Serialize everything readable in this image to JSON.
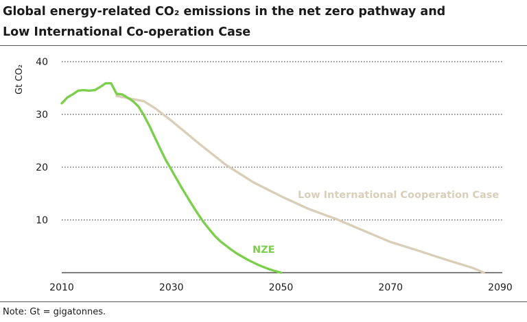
{
  "title_line1": "Global energy-related CO₂ emissions in the net zero pathway and",
  "title_line2": "Low International Co-operation Case",
  "note": "Note: Gt = gigatonnes.",
  "colors": {
    "nze": "#7ccf4b",
    "lic": "#d9cfb8",
    "grid": "#777777",
    "axis": "#333333"
  },
  "chart_data": {
    "type": "line",
    "ylabel": "Gt CO₂",
    "xlim": [
      2010,
      2090
    ],
    "ylim": [
      0,
      40
    ],
    "xticks": [
      2010,
      2030,
      2050,
      2070,
      2090
    ],
    "yticks": [
      10,
      20,
      30,
      40
    ],
    "grid": "horizontal dotted",
    "series": [
      {
        "name": "NZE",
        "color": "#7ccf4b",
        "x": [
          2010,
          2011,
          2012,
          2013,
          2014,
          2015,
          2016,
          2017,
          2018,
          2019,
          2020,
          2021,
          2022,
          2023,
          2024,
          2025,
          2026,
          2027,
          2028,
          2029,
          2030,
          2031,
          2032,
          2033,
          2034,
          2035,
          2036,
          2037,
          2038,
          2039,
          2040,
          2041,
          2042,
          2043,
          2044,
          2045,
          2046,
          2047,
          2048,
          2049,
          2050
        ],
        "values": [
          32.1,
          33.2,
          33.8,
          34.5,
          34.6,
          34.5,
          34.6,
          35.2,
          35.9,
          35.9,
          33.9,
          33.8,
          33.2,
          32.5,
          31.5,
          29.8,
          27.8,
          25.6,
          23.4,
          21.3,
          19.5,
          17.7,
          15.9,
          14.2,
          12.5,
          10.9,
          9.4,
          8.1,
          6.9,
          5.9,
          5.1,
          4.3,
          3.6,
          3.0,
          2.4,
          1.9,
          1.4,
          1.0,
          0.6,
          0.3,
          0.0
        ]
      },
      {
        "name": "Low International Cooperation Case",
        "color": "#d9cfb8",
        "x": [
          2020,
          2022,
          2025,
          2027,
          2030,
          2035,
          2040,
          2045,
          2050,
          2055,
          2060,
          2065,
          2070,
          2075,
          2080,
          2085,
          2087
        ],
        "values": [
          33.5,
          33.1,
          32.5,
          31.2,
          28.8,
          24.5,
          20.4,
          17.1,
          14.5,
          12.1,
          10.2,
          8.0,
          5.8,
          4.2,
          2.5,
          0.9,
          0.0
        ]
      }
    ]
  }
}
